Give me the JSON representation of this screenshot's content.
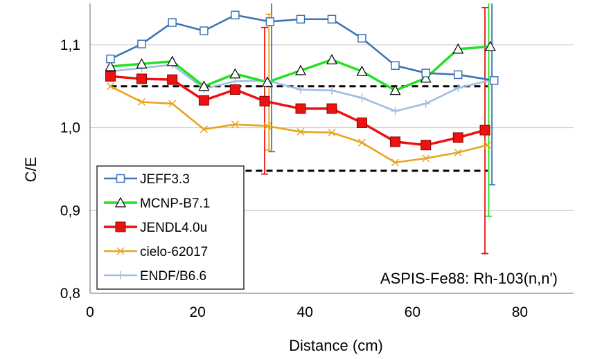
{
  "chart_data": {
    "type": "line",
    "xlabel": "Distance (cm)",
    "ylabel": "C/E",
    "xlim": [
      0,
      90
    ],
    "ylim": [
      0.8,
      1.15
    ],
    "x_ticks": [
      0,
      20,
      40,
      60,
      80
    ],
    "x_tick_labels": [
      "0",
      "20",
      "40",
      "60",
      "80"
    ],
    "y_ticks": [
      0.8,
      0.9,
      1.0,
      1.1
    ],
    "y_tick_labels": [
      "0,8",
      "0,9",
      "1,0",
      "1,1"
    ],
    "grid": "horizontal",
    "legend_position": "bottom-left",
    "annotation": "ASPIS-Fe88:  Rh-103(n,n')",
    "series": [
      {
        "name": "JEFF3.3",
        "color": "#3B74B4",
        "marker": "open-square",
        "x": [
          3.8,
          9.6,
          15.3,
          21.2,
          27.0,
          33.5,
          39.2,
          45.0,
          50.6,
          56.8,
          62.5,
          68.5,
          75.2
        ],
        "values": [
          1.083,
          1.101,
          1.127,
          1.117,
          1.136,
          1.128,
          1.131,
          1.131,
          1.108,
          1.075,
          1.066,
          1.064,
          1.057
        ],
        "error_bars": [
          {
            "x": 33.8,
            "low": 0.971,
            "high": 1.15
          },
          {
            "x": 74.8,
            "low": 0.931,
            "high": 1.15
          }
        ]
      },
      {
        "name": "MCNP-B7.1",
        "color": "#22E022",
        "marker": "open-triangle",
        "x": [
          3.8,
          9.6,
          15.3,
          21.2,
          27.0,
          33.0,
          39.2,
          45.0,
          50.6,
          56.8,
          62.5,
          68.5,
          74.5
        ],
        "values": [
          1.074,
          1.077,
          1.08,
          1.05,
          1.065,
          1.055,
          1.069,
          1.082,
          1.068,
          1.045,
          1.06,
          1.095,
          1.098
        ],
        "error_bars": [
          {
            "x": 74.2,
            "low": 0.893,
            "high": 1.15
          }
        ]
      },
      {
        "name": "JENDL4.0u",
        "color": "#EE1111",
        "marker": "filled-square",
        "x": [
          3.8,
          9.6,
          15.3,
          21.2,
          27.0,
          32.5,
          39.2,
          45.0,
          50.6,
          56.8,
          62.5,
          68.5,
          73.5
        ],
        "values": [
          1.062,
          1.059,
          1.058,
          1.033,
          1.046,
          1.032,
          1.023,
          1.023,
          1.006,
          0.983,
          0.979,
          0.988,
          0.997
        ],
        "error_bars": [
          {
            "x": 32.5,
            "low": 0.944,
            "high": 1.121
          },
          {
            "x": 73.5,
            "low": 0.848,
            "high": 1.145
          }
        ]
      },
      {
        "name": "cielo-62017",
        "color": "#E8A41C",
        "marker": "x",
        "x": [
          3.8,
          9.6,
          15.3,
          21.2,
          27.0,
          33.0,
          39.2,
          45.0,
          50.6,
          56.8,
          62.5,
          68.5,
          74.0
        ],
        "values": [
          1.05,
          1.031,
          1.029,
          0.998,
          1.004,
          1.002,
          0.995,
          0.994,
          0.982,
          0.958,
          0.963,
          0.97,
          0.979
        ],
        "error_bars": [
          {
            "x": 33.3,
            "low": 0.973,
            "high": 1.137
          }
        ]
      },
      {
        "name": "ENDF/B6.6",
        "color": "#9DBFE3",
        "marker": "plus",
        "x": [
          3.8,
          9.6,
          15.3,
          21.2,
          27.0,
          33.0,
          39.2,
          45.0,
          50.6,
          56.8,
          62.5,
          68.5,
          75.0
        ],
        "values": [
          1.068,
          1.072,
          1.076,
          1.047,
          1.056,
          1.057,
          1.046,
          1.045,
          1.036,
          1.02,
          1.029,
          1.048,
          1.058
        ],
        "error_bars": []
      }
    ],
    "reference_lines": [
      {
        "style": "dashed",
        "color": "#000000",
        "y": 1.05,
        "x_start": 3.8,
        "x_end": 74.0
      },
      {
        "style": "dashed",
        "color": "#000000",
        "y": 0.948,
        "x_start": 3.8,
        "x_end": 74.0
      }
    ]
  }
}
